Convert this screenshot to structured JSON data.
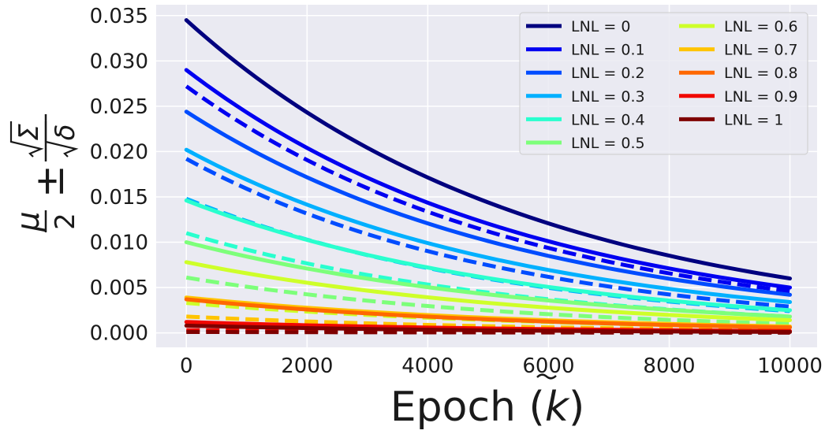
{
  "chart_data": {
    "type": "line",
    "title": "",
    "xlabel": "Epoch (",
    "xlabel_symbol": "k",
    "xlabel_close": ")",
    "ylabel": "μ/2 ± √Σ/√δ",
    "xlim": [
      -500,
      10450
    ],
    "ylim": [
      -0.0016,
      0.0362
    ],
    "xticks": [
      0,
      2000,
      4000,
      6000,
      8000,
      10000
    ],
    "xtick_labels": [
      "0",
      "2000",
      "4000",
      "6000",
      "8000",
      "10000"
    ],
    "yticks": [
      0.0,
      0.005,
      0.01,
      0.015,
      0.02,
      0.025,
      0.03,
      0.035
    ],
    "ytick_labels": [
      "0.000",
      "0.005",
      "0.010",
      "0.015",
      "0.020",
      "0.025",
      "0.030",
      "0.035"
    ],
    "grid": true,
    "legend_position": "top-right",
    "legend_columns": 2,
    "x_range": [
      0,
      10000
    ],
    "series": [
      {
        "name": "LNL = 0",
        "color": "#00007f",
        "solid": [
          0.0345,
          0.006
        ],
        "dashed": null
      },
      {
        "name": "LNL = 0.1",
        "color": "#0000f1",
        "solid": [
          0.029,
          0.005
        ],
        "dashed": [
          0.0272,
          0.0046
        ]
      },
      {
        "name": "LNL = 0.2",
        "color": "#004cff",
        "solid": [
          0.0244,
          0.0042
        ],
        "dashed": [
          0.0192,
          0.0029
        ]
      },
      {
        "name": "LNL = 0.3",
        "color": "#00b0ff",
        "solid": [
          0.0202,
          0.0034
        ],
        "dashed": [
          0.0148,
          0.0024
        ]
      },
      {
        "name": "LNL = 0.4",
        "color": "#29ffce",
        "solid": [
          0.0146,
          0.0025
        ],
        "dashed": [
          0.011,
          0.0018
        ]
      },
      {
        "name": "LNL = 0.5",
        "color": "#7dff7a",
        "solid": [
          0.01,
          0.0018
        ],
        "dashed": [
          0.0061,
          0.001
        ]
      },
      {
        "name": "LNL = 0.6",
        "color": "#ceff29",
        "solid": [
          0.0078,
          0.0014
        ],
        "dashed": [
          0.0033,
          0.0006
        ]
      },
      {
        "name": "LNL = 0.7",
        "color": "#ffc400",
        "solid": [
          0.0039,
          0.0007
        ],
        "dashed": [
          0.0018,
          0.0003
        ]
      },
      {
        "name": "LNL = 0.8",
        "color": "#ff6800",
        "solid": [
          0.0037,
          0.0006
        ],
        "dashed": [
          0.0011,
          0.0002
        ]
      },
      {
        "name": "LNL = 0.9",
        "color": "#f10800",
        "solid": [
          0.0012,
          0.0002
        ],
        "dashed": [
          0.0003,
          5e-05
        ]
      },
      {
        "name": "LNL = 1",
        "color": "#7f0000",
        "solid": [
          0.0008,
          0.0001
        ],
        "dashed": [
          0.0001,
          2e-05
        ]
      }
    ]
  }
}
